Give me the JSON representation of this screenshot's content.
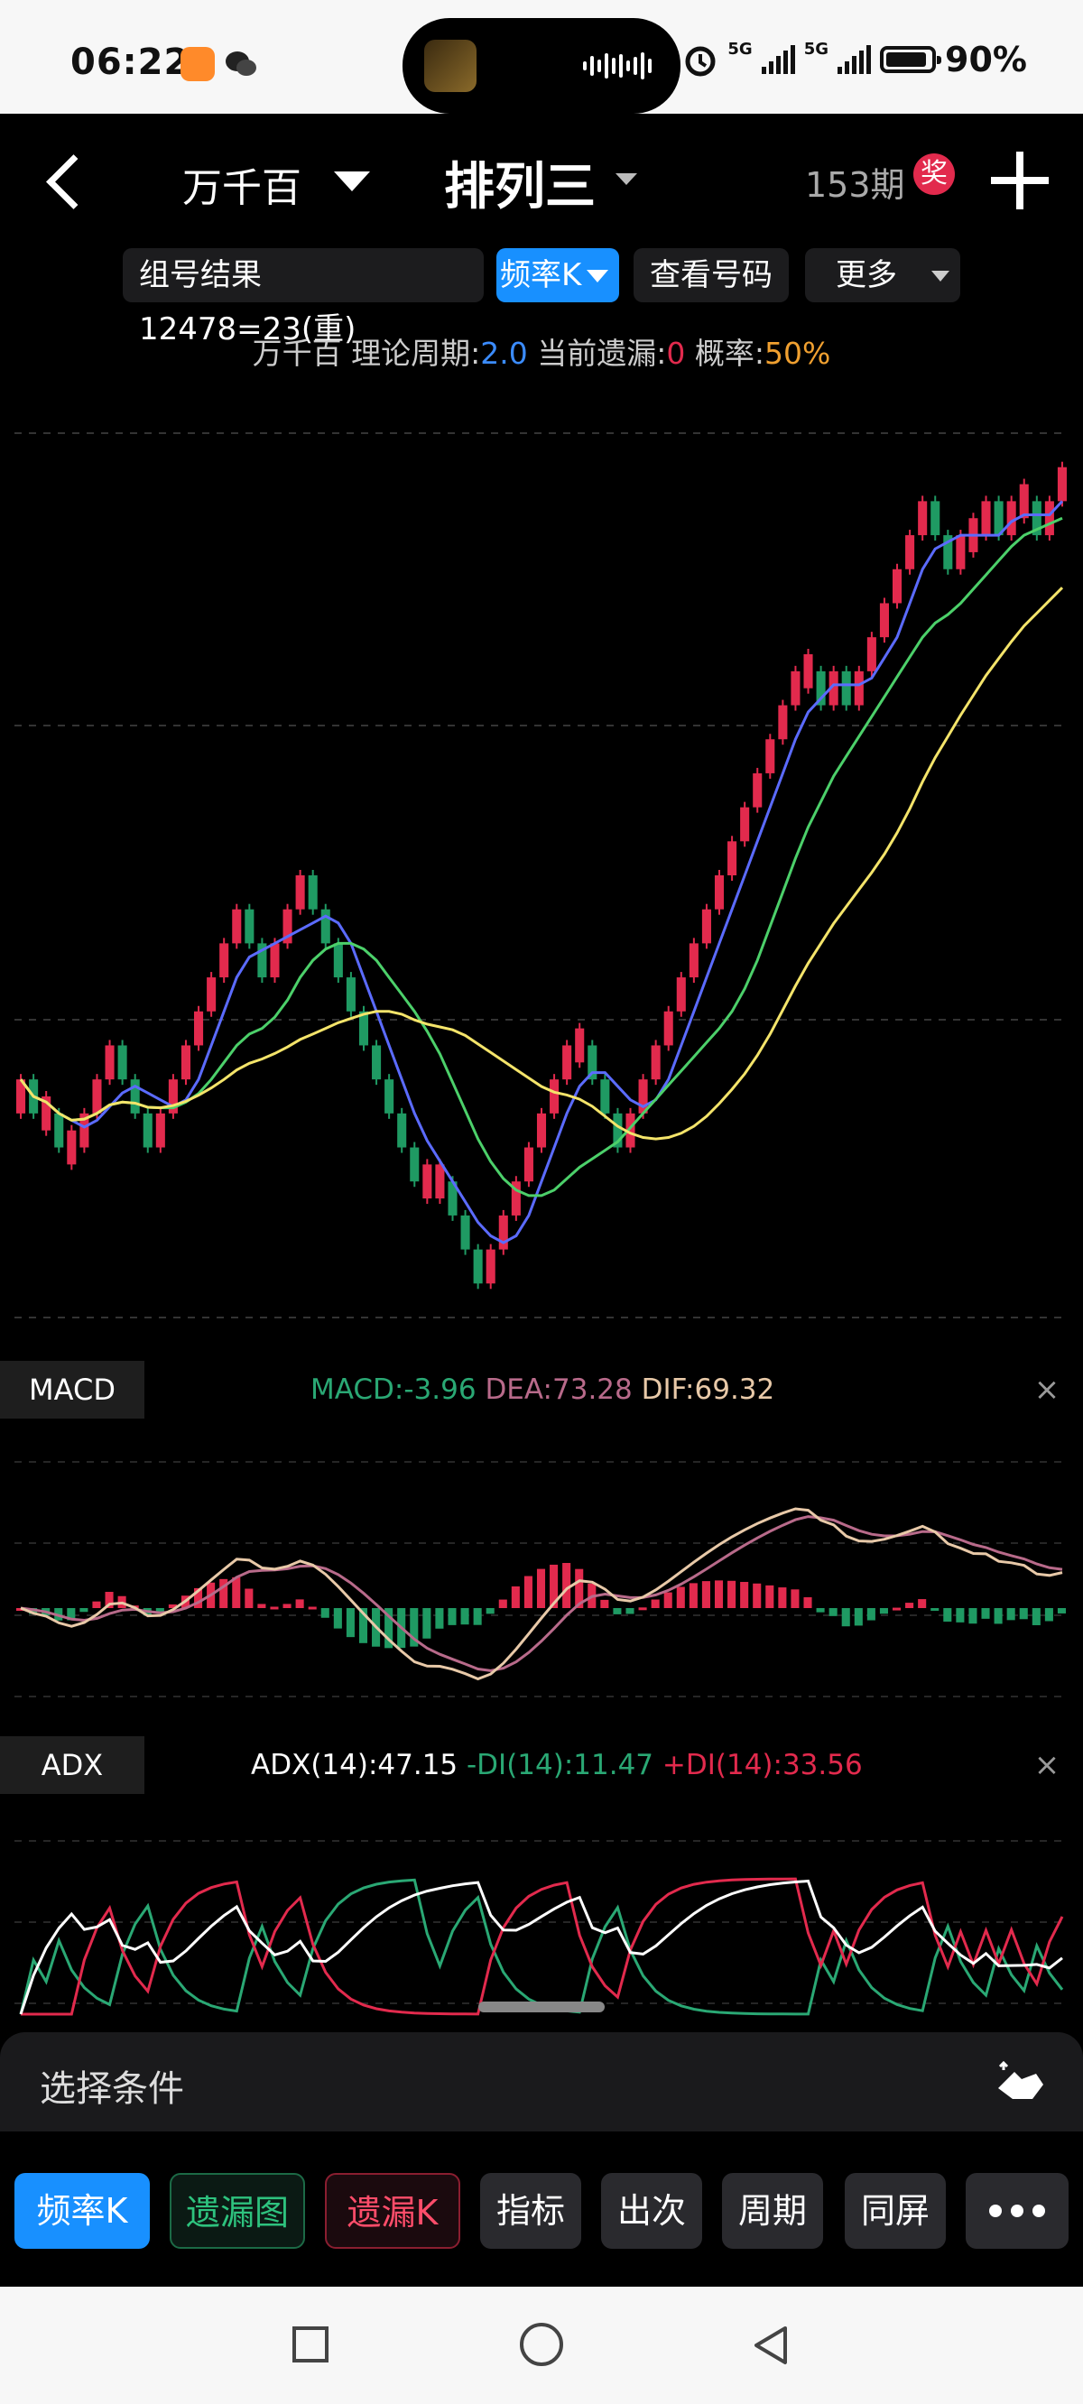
{
  "status_bar": {
    "time": "06:22",
    "net1": "5G",
    "net2": "5G",
    "battery": "90%"
  },
  "header": {
    "position_label": "万千百",
    "lottery_name": "排列三",
    "issues": "153期",
    "award_badge": "奖"
  },
  "chips": {
    "combo_result": "组号结果 12478=23(重)",
    "freq_k": "频率K",
    "view_numbers": "查看号码",
    "more": "更多"
  },
  "info_line": {
    "prefix": "万千百 理论周期:",
    "period": "2.0",
    "missing_label": " 当前遗漏:",
    "missing": "0",
    "prob_label": " 概率:",
    "prob": "50%"
  },
  "colors": {
    "up": "#e22a4d",
    "down": "#1f9a63",
    "ma_short": "#5b6bff",
    "ma_mid": "#4cd06a",
    "ma_long": "#f4e46a",
    "macd_dea": "#b86a8a",
    "macd_dif": "#e8c9a8",
    "adx": "#ffffff",
    "minus_di": "#2aa874",
    "plus_di": "#e22a4d",
    "link": "#3b8cff",
    "warn": "#f0a030"
  },
  "macd": {
    "tag": "MACD",
    "macd_label": "MACD:-3.96",
    "dea_label": "DEA:73.28",
    "dif_label": "DIF:69.32"
  },
  "adx": {
    "tag": "ADX",
    "adx_label": "ADX(14):47.15",
    "minus_di_label": "-DI(14):11.47",
    "plus_di_label": "+DI(14):33.56"
  },
  "panel_close": "×",
  "sheet": {
    "label": "选择条件"
  },
  "toolbar": {
    "freq_k": "频率K",
    "missing_chart": "遗漏图",
    "missing_k": "遗漏K",
    "indicator": "指标",
    "occurrence": "出次",
    "period": "周期",
    "same_screen": "同屏"
  },
  "chart_data": {
    "type": "candlestick-bricks",
    "note_free": true,
    "closes": [
      0,
      -1,
      -1,
      -2,
      -2,
      -1,
      0,
      1,
      0,
      -1,
      -2,
      -1,
      0,
      1,
      2,
      3,
      4,
      5,
      4,
      3,
      4,
      5,
      6,
      5,
      4,
      3,
      2,
      1,
      0,
      -1,
      -2,
      -3,
      -3,
      -3,
      -4,
      -5,
      -6,
      -5,
      -4,
      -3,
      -2,
      -1,
      0,
      1,
      1,
      0,
      -1,
      -2,
      -1,
      0,
      1,
      2,
      3,
      4,
      5,
      6,
      7,
      8,
      9,
      10,
      11,
      12,
      12,
      11,
      12,
      11,
      12,
      13,
      14,
      15,
      16,
      17,
      16,
      15,
      16,
      16,
      17,
      16,
      17,
      17,
      16,
      17,
      18
    ]
  }
}
